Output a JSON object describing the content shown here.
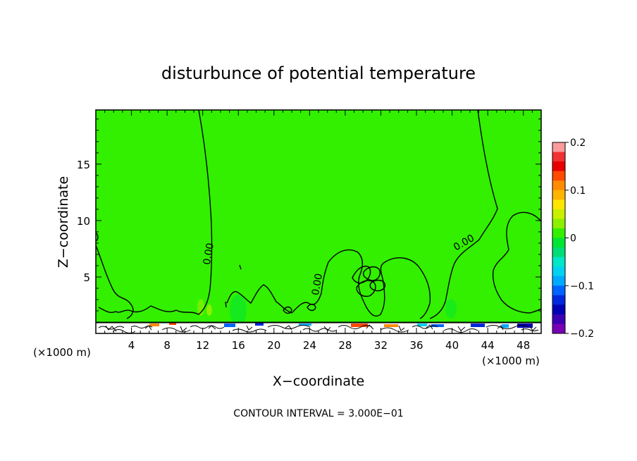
{
  "chart_data": {
    "type": "heatmap",
    "title": "disturbunce of potential temperature",
    "xlabel": "X−coordinate",
    "ylabel": "Z−coordinate",
    "x_unit_left": "(×1000 m)",
    "x_unit_right": "(×1000 m)",
    "xlim": [
      0,
      50
    ],
    "ylim": [
      0,
      19.8
    ],
    "x_ticks": [
      4,
      8,
      12,
      16,
      20,
      24,
      28,
      32,
      36,
      40,
      44,
      48
    ],
    "y_ticks": [
      5,
      10,
      15
    ],
    "field_background_value": 0.0,
    "contour_labels": [
      {
        "text": "0.00",
        "x": 13.0,
        "z": 7.0,
        "angle": -80
      },
      {
        "text": "0.00",
        "x": 25.2,
        "z": 4.3,
        "angle": -80
      },
      {
        "text": "0.00",
        "x": 41.5,
        "z": 7.8,
        "angle": -30
      }
    ],
    "colorbar": {
      "vmin": -0.2,
      "vmax": 0.2,
      "tick_labels": [
        "0.2",
        "0.1",
        "0",
        "−0.1",
        "−0.2"
      ],
      "tick_values": [
        0.2,
        0.1,
        0,
        -0.1,
        -0.2
      ],
      "colors": [
        "#fa9a9a",
        "#f03232",
        "#e80000",
        "#ff4a00",
        "#ff8c00",
        "#ffb400",
        "#ffe600",
        "#c8f000",
        "#8cf000",
        "#32f000",
        "#00e632",
        "#00dc78",
        "#00e6c8",
        "#00d2f0",
        "#00aaff",
        "#0064ff",
        "#0028dc",
        "#0000b4",
        "#3c00b4",
        "#7800b4"
      ]
    },
    "contour_interval_text": "CONTOUR INTERVAL = 3.000E−01"
  }
}
